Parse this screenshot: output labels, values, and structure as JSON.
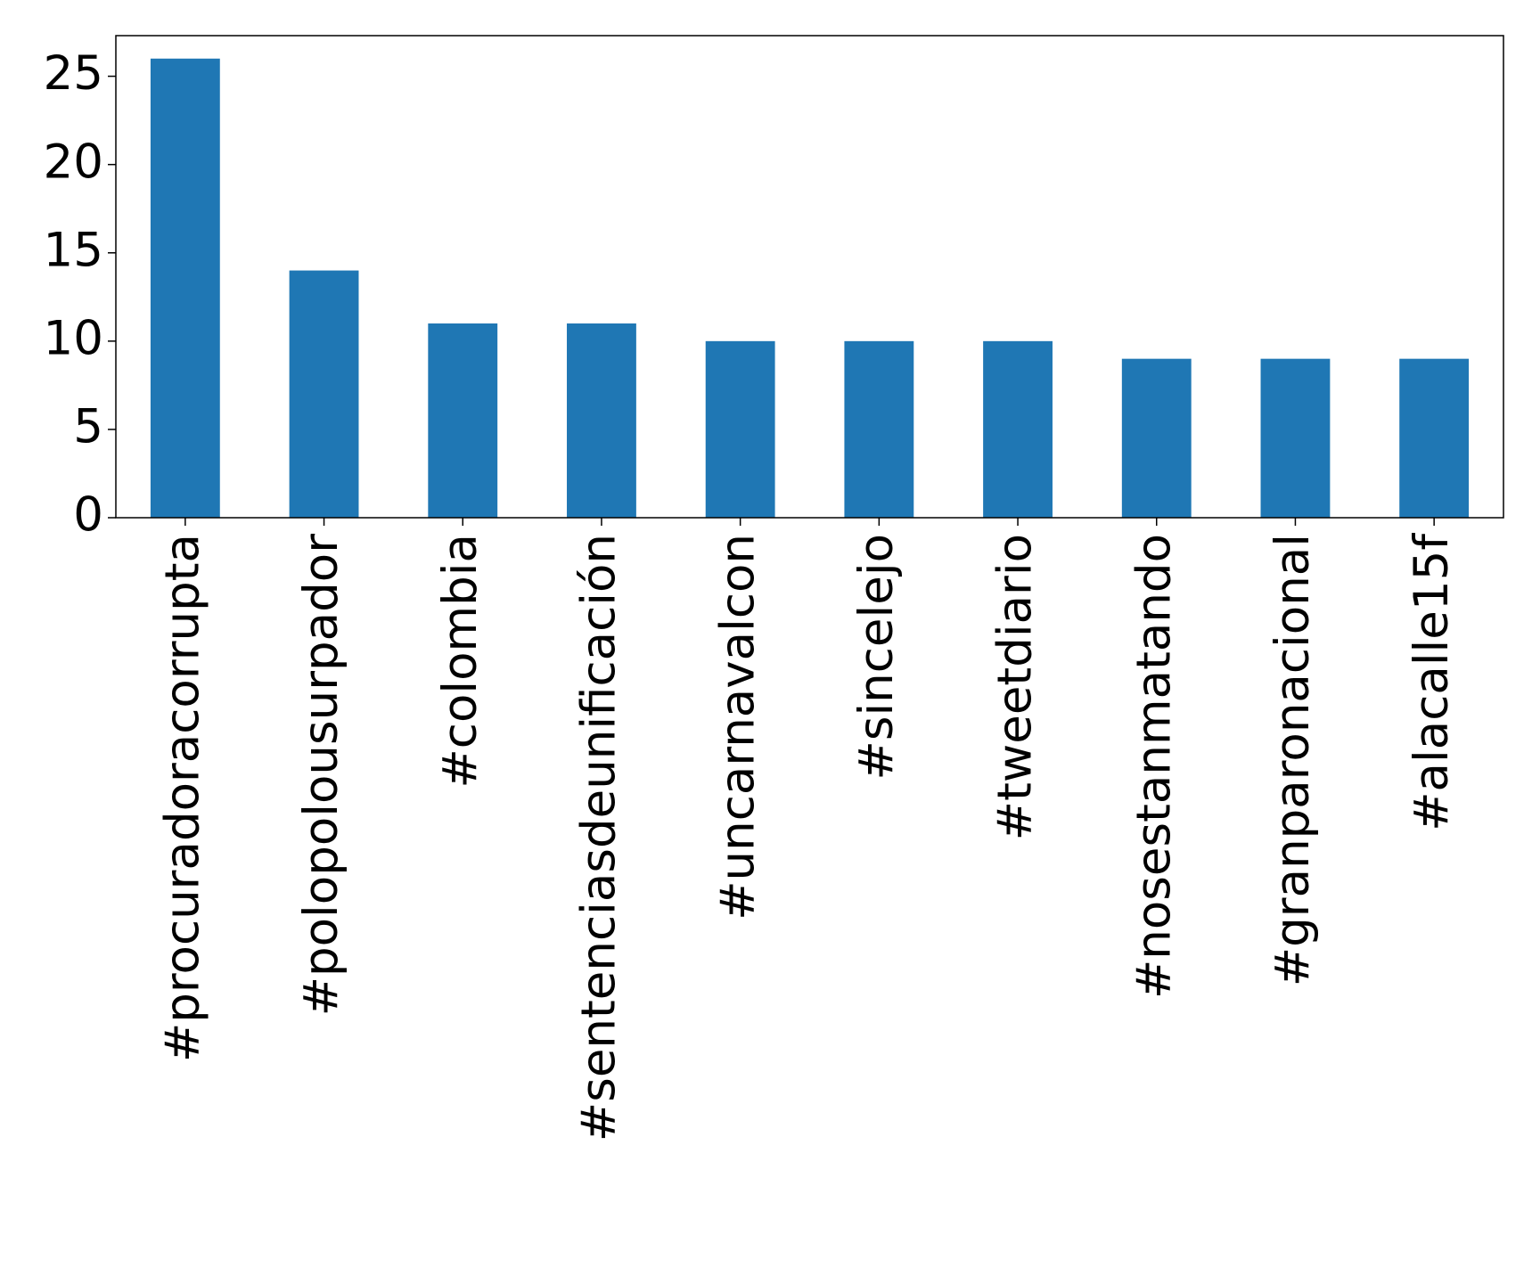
{
  "chart_data": {
    "type": "bar",
    "categories": [
      "#procuradoracorrupta",
      "#polopolousurpador",
      "#colombia",
      "#sentenciasdeunificación",
      "#uncarnavalcon",
      "#sincelejo",
      "#tweetdiario",
      "#nosestanmatando",
      "#granparonacional",
      "#alacalle15f"
    ],
    "values": [
      26,
      14,
      11,
      11,
      10,
      10,
      10,
      9,
      9,
      9
    ],
    "color": "#1f77b4",
    "ylim": [
      0,
      27.3
    ],
    "yticks": [
      0,
      5,
      10,
      15,
      20,
      25
    ],
    "grid": false
  }
}
